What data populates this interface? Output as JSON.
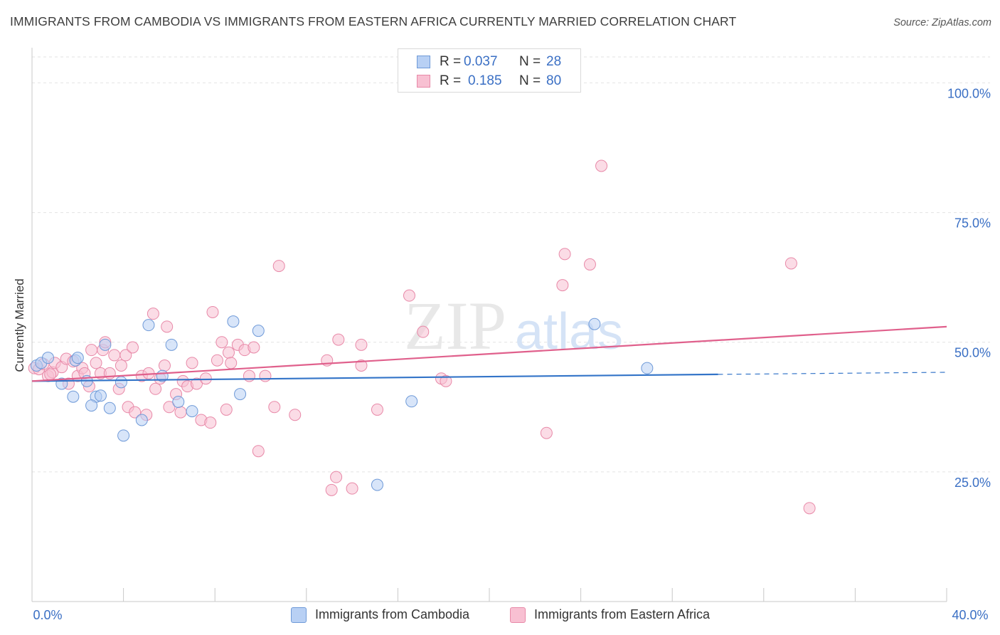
{
  "title": "IMMIGRANTS FROM CAMBODIA VS IMMIGRANTS FROM EASTERN AFRICA CURRENTLY MARRIED CORRELATION CHART",
  "source": "Source: ZipAtlas.com",
  "legend": {
    "rows": [
      {
        "r_label": "R =",
        "r_value": "0.037",
        "n_label": "N =",
        "n_value": "28"
      },
      {
        "r_label": "R =",
        "r_value": "0.185",
        "n_label": "N =",
        "n_value": "80"
      }
    ]
  },
  "bottom_legend": {
    "cambodia": "Immigrants from Cambodia",
    "eastern_africa": "Immigrants from Eastern Africa"
  },
  "colors": {
    "cambodia_fill": "#b8d0f4",
    "cambodia_stroke": "#6f9ad8",
    "cambodia_line": "#3374c8",
    "africa_fill": "#f8c0d2",
    "africa_stroke": "#e889a8",
    "africa_line": "#e0608c",
    "tick_label": "#3a6fc4",
    "grid": "#e2e2e2"
  },
  "chart_data": {
    "type": "scatter",
    "title": "IMMIGRANTS FROM CAMBODIA VS IMMIGRANTS FROM EASTERN AFRICA CURRENTLY MARRIED CORRELATION CHART",
    "xlabel": "",
    "ylabel": "Currently Married",
    "xlim": [
      0,
      40
    ],
    "ylim": [
      0,
      105
    ],
    "x_tick_labels": {
      "min": "0.0%",
      "max": "40.0%"
    },
    "y_ticks": [
      25,
      50,
      75,
      100
    ],
    "y_tick_labels": [
      "25.0%",
      "50.0%",
      "75.0%",
      "100.0%"
    ],
    "watermark": {
      "zip": "ZIP",
      "atlas": "atlas"
    },
    "series": [
      {
        "name": "Immigrants from Cambodia",
        "R": 0.037,
        "N": 28,
        "points": [
          [
            0.2,
            45.5
          ],
          [
            0.4,
            46.0
          ],
          [
            0.7,
            47.0
          ],
          [
            1.3,
            42.0
          ],
          [
            1.8,
            39.5
          ],
          [
            1.9,
            46.5
          ],
          [
            2.0,
            47.0
          ],
          [
            2.8,
            39.5
          ],
          [
            2.4,
            42.5
          ],
          [
            2.6,
            37.8
          ],
          [
            3.0,
            39.7
          ],
          [
            3.4,
            37.3
          ],
          [
            3.2,
            49.5
          ],
          [
            3.9,
            42.3
          ],
          [
            4.0,
            32.0
          ],
          [
            4.8,
            35.0
          ],
          [
            5.1,
            53.3
          ],
          [
            5.7,
            43.5
          ],
          [
            6.1,
            49.5
          ],
          [
            6.4,
            38.5
          ],
          [
            7.0,
            36.7
          ],
          [
            8.8,
            54.0
          ],
          [
            9.1,
            40.0
          ],
          [
            9.9,
            52.2
          ],
          [
            15.1,
            22.5
          ],
          [
            16.6,
            38.6
          ],
          [
            24.6,
            53.5
          ],
          [
            26.9,
            45.0
          ]
        ],
        "trend": {
          "x0": 0,
          "y0": 42.5,
          "x1": 30,
          "y1": 43.8,
          "dash_to_x": 40,
          "dash_y": 44.2
        }
      },
      {
        "name": "Immigrants from Eastern Africa",
        "R": 0.185,
        "N": 80,
        "points": [
          [
            0.1,
            45.0
          ],
          [
            0.3,
            44.8
          ],
          [
            0.5,
            45.8
          ],
          [
            0.7,
            43.5
          ],
          [
            0.9,
            44.2
          ],
          [
            1.0,
            46.0
          ],
          [
            1.3,
            45.2
          ],
          [
            1.5,
            46.8
          ],
          [
            1.6,
            42.0
          ],
          [
            1.8,
            46.3
          ],
          [
            2.0,
            43.5
          ],
          [
            2.2,
            45.0
          ],
          [
            2.3,
            44.0
          ],
          [
            2.5,
            41.5
          ],
          [
            2.6,
            48.5
          ],
          [
            2.8,
            46.0
          ],
          [
            3.0,
            44.0
          ],
          [
            3.1,
            48.5
          ],
          [
            3.2,
            50.0
          ],
          [
            3.4,
            44.0
          ],
          [
            3.6,
            47.5
          ],
          [
            3.8,
            41.0
          ],
          [
            3.9,
            45.5
          ],
          [
            4.1,
            47.5
          ],
          [
            4.2,
            37.5
          ],
          [
            4.4,
            49.0
          ],
          [
            4.5,
            36.5
          ],
          [
            4.8,
            43.5
          ],
          [
            5.0,
            36.0
          ],
          [
            5.1,
            44.0
          ],
          [
            5.3,
            55.5
          ],
          [
            5.4,
            41.0
          ],
          [
            5.6,
            43.0
          ],
          [
            5.8,
            45.5
          ],
          [
            5.9,
            53.0
          ],
          [
            6.0,
            37.5
          ],
          [
            6.3,
            40.0
          ],
          [
            6.5,
            36.5
          ],
          [
            6.6,
            42.5
          ],
          [
            6.8,
            41.5
          ],
          [
            7.0,
            46.0
          ],
          [
            7.2,
            42.0
          ],
          [
            7.4,
            35.0
          ],
          [
            7.6,
            43.0
          ],
          [
            7.8,
            34.5
          ],
          [
            7.9,
            55.8
          ],
          [
            8.1,
            46.5
          ],
          [
            8.3,
            50.0
          ],
          [
            8.5,
            37.0
          ],
          [
            8.6,
            48.0
          ],
          [
            8.7,
            46.0
          ],
          [
            9.0,
            49.5
          ],
          [
            9.3,
            48.5
          ],
          [
            9.5,
            43.5
          ],
          [
            9.7,
            49.0
          ],
          [
            9.9,
            29.0
          ],
          [
            10.2,
            43.5
          ],
          [
            10.6,
            37.5
          ],
          [
            10.8,
            64.7
          ],
          [
            11.5,
            36.0
          ],
          [
            12.9,
            46.5
          ],
          [
            13.1,
            21.5
          ],
          [
            13.3,
            24.0
          ],
          [
            13.4,
            50.5
          ],
          [
            14.0,
            21.8
          ],
          [
            14.4,
            45.5
          ],
          [
            14.4,
            49.5
          ],
          [
            15.1,
            37.0
          ],
          [
            16.5,
            59.0
          ],
          [
            17.1,
            52.0
          ],
          [
            17.9,
            43.0
          ],
          [
            18.1,
            42.5
          ],
          [
            22.5,
            32.5
          ],
          [
            23.2,
            61.0
          ],
          [
            23.3,
            67.0
          ],
          [
            24.4,
            65.0
          ],
          [
            24.9,
            84.0
          ],
          [
            33.2,
            65.2
          ],
          [
            34.0,
            18.0
          ],
          [
            0.8,
            43.8
          ]
        ],
        "trend": {
          "x0": 0,
          "y0": 42.5,
          "x1": 40,
          "y1": 53.0
        }
      }
    ]
  }
}
